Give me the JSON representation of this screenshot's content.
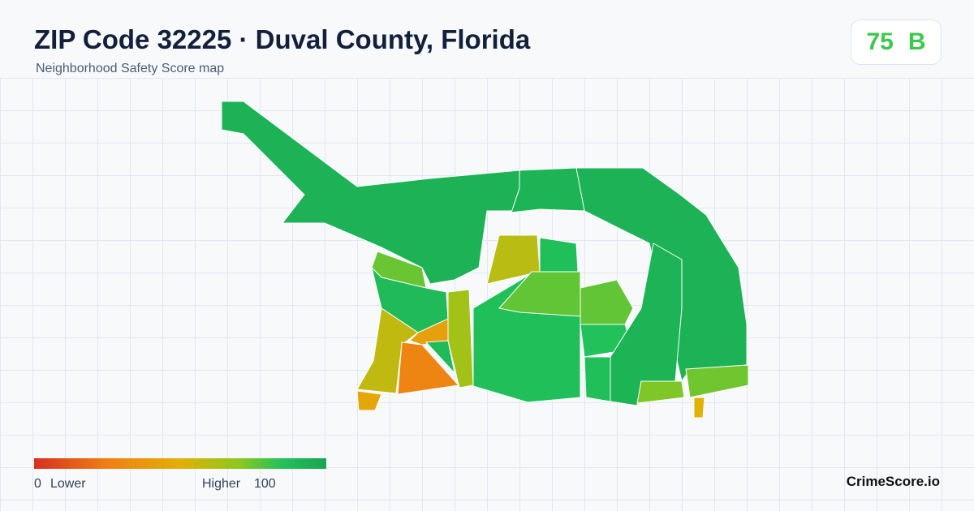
{
  "header": {
    "title": "ZIP Code 32225 · Duval County, Florida",
    "subtitle": "Neighborhood Safety Score map"
  },
  "score": {
    "value": 75,
    "grade": "B"
  },
  "legend": {
    "min": 0,
    "min_label": "Lower",
    "max_label": "Higher",
    "max": 100
  },
  "brand": "CrimeScore.io",
  "regions": {
    "scores": [
      93,
      93,
      92,
      60,
      86,
      75,
      88,
      58,
      42,
      28,
      88,
      65,
      86,
      76,
      76,
      85,
      86,
      92,
      72,
      74,
      45,
      50
    ]
  }
}
